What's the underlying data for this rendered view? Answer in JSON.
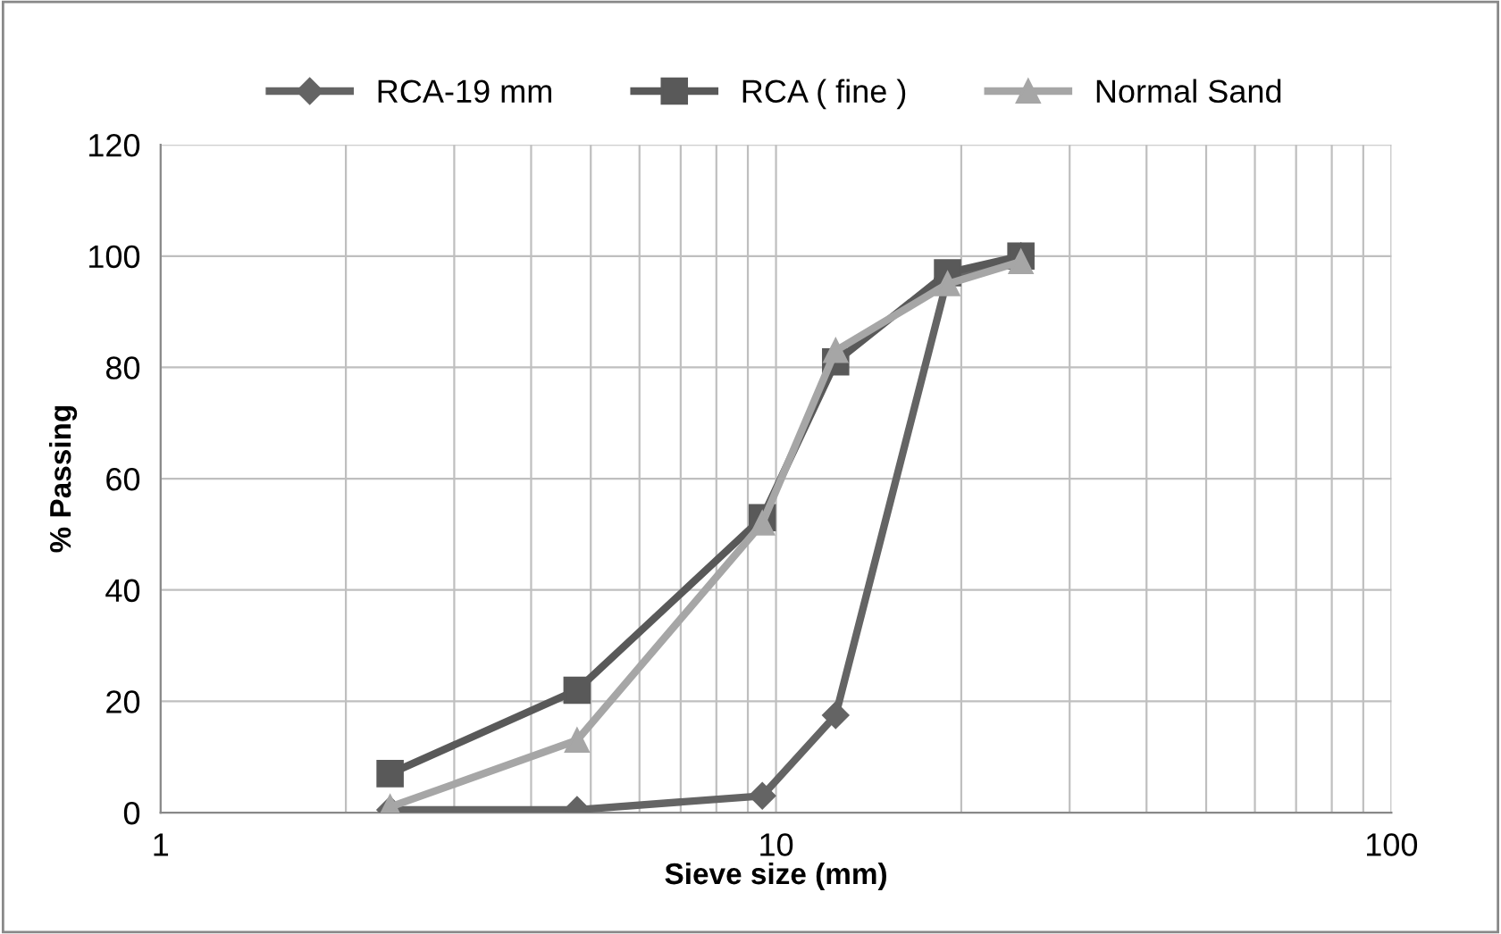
{
  "chart_data": {
    "type": "line",
    "xlabel": "Sieve size (mm)",
    "ylabel": "% Passing",
    "log": "x",
    "xlim": [
      1,
      100
    ],
    "xticks": [
      1,
      10,
      100
    ],
    "ylim": [
      0,
      120
    ],
    "yticks": [
      0,
      20,
      40,
      60,
      80,
      100,
      120
    ],
    "grid": true,
    "legend": "top",
    "line_style": "solid",
    "series": [
      {
        "name": "RCA-19 mm",
        "color": "#646464",
        "marker": "diamond",
        "x": [
          2.36,
          4.75,
          9.5,
          12.5,
          19,
          25
        ],
        "values": [
          0.5,
          0.5,
          3,
          17.5,
          96,
          100
        ]
      },
      {
        "name": "RCA ( fine )",
        "color": "#595959",
        "marker": "square",
        "x": [
          2.36,
          4.75,
          9.5,
          12.5,
          19,
          25
        ],
        "values": [
          7,
          22,
          53,
          81,
          97,
          100
        ]
      },
      {
        "name": "Normal Sand",
        "color": "#a6a6a6",
        "marker": "triangle",
        "x": [
          2.36,
          4.75,
          9.5,
          12.5,
          19,
          25
        ],
        "values": [
          1,
          13,
          52,
          83,
          95,
          99
        ]
      }
    ]
  }
}
